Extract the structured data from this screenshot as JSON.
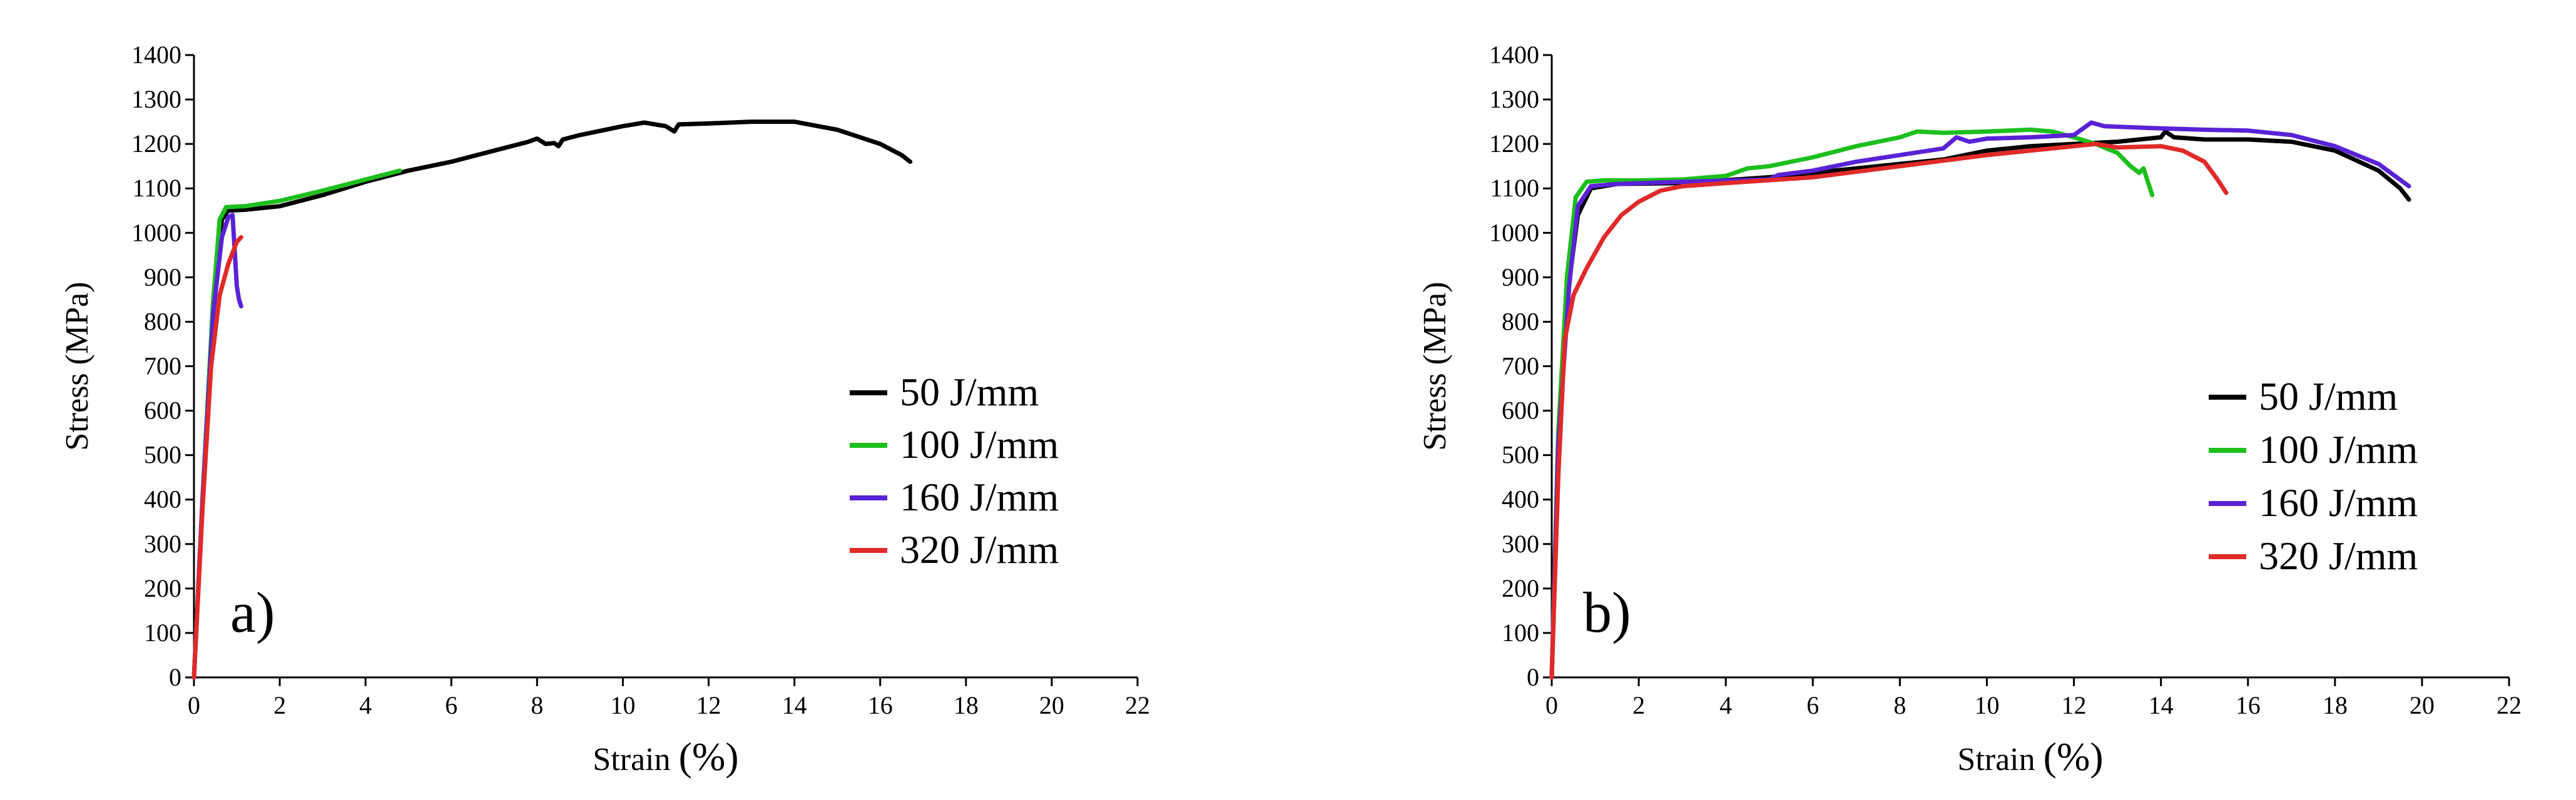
{
  "colors": {
    "50": "#000000",
    "100": "#1dbf1d",
    "160": "#5a22d6",
    "320": "#e02a2a",
    "axis": "#000000"
  },
  "chart_data": [
    {
      "type": "line",
      "panel_label": "a)",
      "xlabel": "Strain",
      "xlabel_unit": "(%)",
      "ylabel": "Stress (MPa)",
      "xlim": [
        0,
        22
      ],
      "ylim": [
        0,
        1400
      ],
      "xticks": [
        0,
        2,
        4,
        6,
        8,
        10,
        12,
        14,
        16,
        18,
        20,
        22
      ],
      "yticks": [
        0,
        100,
        200,
        300,
        400,
        500,
        600,
        700,
        800,
        900,
        1000,
        1100,
        1200,
        1300,
        1400
      ],
      "legend": [
        "50 J/mm",
        "100 J/mm",
        "160 J/mm",
        "320 J/mm"
      ],
      "series": [
        {
          "name": "50 J/mm",
          "color_key": "50",
          "points": [
            [
              0,
              0
            ],
            [
              0.2,
              400
            ],
            [
              0.45,
              850
            ],
            [
              0.65,
              1030
            ],
            [
              0.8,
              1050
            ],
            [
              1.2,
              1052
            ],
            [
              2,
              1060
            ],
            [
              3,
              1085
            ],
            [
              4,
              1115
            ],
            [
              5,
              1140
            ],
            [
              6,
              1160
            ],
            [
              7,
              1185
            ],
            [
              7.8,
              1205
            ],
            [
              8,
              1212
            ],
            [
              8.2,
              1200
            ],
            [
              8.4,
              1202
            ],
            [
              8.5,
              1195
            ],
            [
              8.6,
              1210
            ],
            [
              9,
              1220
            ],
            [
              10,
              1240
            ],
            [
              10.5,
              1248
            ],
            [
              11,
              1240
            ],
            [
              11.2,
              1228
            ],
            [
              11.3,
              1244
            ],
            [
              12,
              1246
            ],
            [
              13,
              1250
            ],
            [
              14,
              1250
            ],
            [
              15,
              1232
            ],
            [
              16,
              1200
            ],
            [
              16.5,
              1175
            ],
            [
              16.7,
              1160
            ]
          ]
        },
        {
          "name": "100 J/mm",
          "color_key": "100",
          "points": [
            [
              0,
              0
            ],
            [
              0.2,
              400
            ],
            [
              0.45,
              850
            ],
            [
              0.6,
              1030
            ],
            [
              0.75,
              1058
            ],
            [
              1.2,
              1060
            ],
            [
              2,
              1072
            ],
            [
              3,
              1095
            ],
            [
              4,
              1120
            ],
            [
              4.8,
              1140
            ]
          ]
        },
        {
          "name": "160 J/mm",
          "color_key": "160",
          "points": [
            [
              0,
              0
            ],
            [
              0.2,
              400
            ],
            [
              0.45,
              820
            ],
            [
              0.65,
              990
            ],
            [
              0.8,
              1035
            ],
            [
              0.9,
              1040
            ],
            [
              0.95,
              960
            ],
            [
              1.0,
              880
            ],
            [
              1.05,
              850
            ],
            [
              1.1,
              835
            ]
          ]
        },
        {
          "name": "320 J/mm",
          "color_key": "320",
          "points": [
            [
              0,
              0
            ],
            [
              0.2,
              380
            ],
            [
              0.4,
              700
            ],
            [
              0.6,
              860
            ],
            [
              0.8,
              930
            ],
            [
              1.0,
              980
            ],
            [
              1.1,
              990
            ]
          ]
        }
      ]
    },
    {
      "type": "line",
      "panel_label": "b)",
      "xlabel": "Strain",
      "xlabel_unit": "(%)",
      "ylabel": "Stress (MPa)",
      "xlim": [
        0,
        22
      ],
      "ylim": [
        0,
        1400
      ],
      "xticks": [
        0,
        2,
        4,
        6,
        8,
        10,
        12,
        14,
        16,
        18,
        20,
        22
      ],
      "yticks": [
        0,
        100,
        200,
        300,
        400,
        500,
        600,
        700,
        800,
        900,
        1000,
        1100,
        1200,
        1300,
        1400
      ],
      "legend": [
        "50 J/mm",
        "100 J/mm",
        "160 J/mm",
        "320 J/mm"
      ],
      "series": [
        {
          "name": "50 J/mm",
          "color_key": "50",
          "points": [
            [
              0,
              0
            ],
            [
              0.15,
              500
            ],
            [
              0.35,
              850
            ],
            [
              0.6,
              1040
            ],
            [
              0.9,
              1100
            ],
            [
              1.5,
              1110
            ],
            [
              3,
              1112
            ],
            [
              5,
              1125
            ],
            [
              7,
              1145
            ],
            [
              9,
              1165
            ],
            [
              10,
              1185
            ],
            [
              11,
              1195
            ],
            [
              12,
              1200
            ],
            [
              13,
              1205
            ],
            [
              14,
              1215
            ],
            [
              14.1,
              1228
            ],
            [
              14.3,
              1215
            ],
            [
              15,
              1210
            ],
            [
              16,
              1210
            ],
            [
              17,
              1205
            ],
            [
              18,
              1185
            ],
            [
              19,
              1140
            ],
            [
              19.5,
              1100
            ],
            [
              19.7,
              1075
            ]
          ]
        },
        {
          "name": "100 J/mm",
          "color_key": "100",
          "points": [
            [
              0,
              0
            ],
            [
              0.15,
              550
            ],
            [
              0.35,
              900
            ],
            [
              0.55,
              1080
            ],
            [
              0.8,
              1115
            ],
            [
              1.2,
              1118
            ],
            [
              2,
              1118
            ],
            [
              3,
              1120
            ],
            [
              4,
              1128
            ],
            [
              4.5,
              1145
            ],
            [
              5,
              1150
            ],
            [
              6,
              1170
            ],
            [
              7,
              1195
            ],
            [
              8,
              1215
            ],
            [
              8.4,
              1228
            ],
            [
              9,
              1225
            ],
            [
              10,
              1228
            ],
            [
              11,
              1232
            ],
            [
              11.5,
              1228
            ],
            [
              12,
              1215
            ],
            [
              12.5,
              1200
            ],
            [
              13,
              1180
            ],
            [
              13.3,
              1150
            ],
            [
              13.5,
              1135
            ],
            [
              13.6,
              1145
            ],
            [
              13.7,
              1115
            ],
            [
              13.8,
              1085
            ]
          ]
        },
        {
          "name": "160 J/mm",
          "color_key": "160",
          "points": [
            [
              0,
              0
            ],
            [
              0.15,
              520
            ],
            [
              0.4,
              880
            ],
            [
              0.6,
              1060
            ],
            [
              0.9,
              1105
            ],
            [
              1.5,
              1110
            ],
            [
              3,
              1115
            ],
            [
              5,
              1120
            ],
            [
              5.2,
              1130
            ],
            [
              6,
              1140
            ],
            [
              7,
              1160
            ],
            [
              8,
              1175
            ],
            [
              9,
              1190
            ],
            [
              9.3,
              1215
            ],
            [
              9.6,
              1205
            ],
            [
              10,
              1212
            ],
            [
              11,
              1215
            ],
            [
              12,
              1220
            ],
            [
              12.4,
              1248
            ],
            [
              12.7,
              1240
            ],
            [
              14,
              1235
            ],
            [
              15,
              1232
            ],
            [
              16,
              1230
            ],
            [
              17,
              1220
            ],
            [
              18,
              1195
            ],
            [
              19,
              1155
            ],
            [
              19.7,
              1105
            ]
          ]
        },
        {
          "name": "320 J/mm",
          "color_key": "320",
          "points": [
            [
              0,
              0
            ],
            [
              0.15,
              450
            ],
            [
              0.3,
              760
            ],
            [
              0.5,
              860
            ],
            [
              0.8,
              920
            ],
            [
              1.2,
              990
            ],
            [
              1.6,
              1040
            ],
            [
              2,
              1070
            ],
            [
              2.5,
              1095
            ],
            [
              3,
              1105
            ],
            [
              4,
              1112
            ],
            [
              6,
              1125
            ],
            [
              8,
              1150
            ],
            [
              10,
              1175
            ],
            [
              11,
              1185
            ],
            [
              12,
              1195
            ],
            [
              12.5,
              1200
            ],
            [
              13,
              1192
            ],
            [
              14,
              1195
            ],
            [
              14.5,
              1185
            ],
            [
              15,
              1160
            ],
            [
              15.3,
              1120
            ],
            [
              15.5,
              1090
            ]
          ]
        }
      ]
    }
  ]
}
